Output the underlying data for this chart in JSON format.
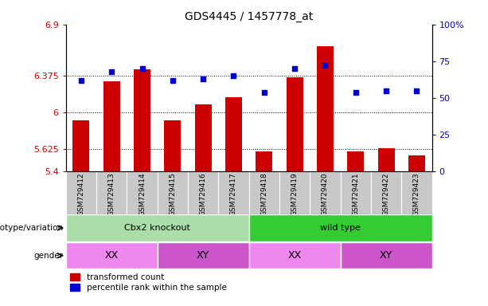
{
  "title": "GDS4445 / 1457778_at",
  "samples": [
    "GSM729412",
    "GSM729413",
    "GSM729414",
    "GSM729415",
    "GSM729416",
    "GSM729417",
    "GSM729418",
    "GSM729419",
    "GSM729420",
    "GSM729421",
    "GSM729422",
    "GSM729423"
  ],
  "transformed_count": [
    5.92,
    6.32,
    6.44,
    5.92,
    6.08,
    6.16,
    5.6,
    6.36,
    6.68,
    5.6,
    5.64,
    5.56
  ],
  "percentile_rank": [
    62,
    68,
    70,
    62,
    63,
    65,
    54,
    70,
    72,
    54,
    55,
    55
  ],
  "ylim_left": [
    5.4,
    6.9
  ],
  "ylim_right": [
    0,
    100
  ],
  "yticks_left": [
    5.4,
    5.625,
    6.0,
    6.375,
    6.9
  ],
  "yticks_right": [
    0,
    25,
    50,
    75,
    100
  ],
  "ytick_labels_left": [
    "5.4",
    "5.625",
    "6",
    "6.375",
    "6.9"
  ],
  "ytick_labels_right": [
    "0",
    "25",
    "50",
    "75",
    "100%"
  ],
  "bar_color": "#cc0000",
  "marker_color": "#0000cc",
  "groups_genotype": [
    {
      "label": "Cbx2 knockout",
      "start": 0,
      "end": 6,
      "color": "#aaddaa"
    },
    {
      "label": "wild type",
      "start": 6,
      "end": 12,
      "color": "#33cc33"
    }
  ],
  "groups_gender": [
    {
      "label": "XX",
      "start": 0,
      "end": 3,
      "color": "#ee88ee"
    },
    {
      "label": "XY",
      "start": 3,
      "end": 6,
      "color": "#cc55cc"
    },
    {
      "label": "XX",
      "start": 6,
      "end": 9,
      "color": "#ee88ee"
    },
    {
      "label": "XY",
      "start": 9,
      "end": 12,
      "color": "#cc55cc"
    }
  ],
  "legend_items": [
    {
      "label": "transformed count",
      "color": "#cc0000"
    },
    {
      "label": "percentile rank within the sample",
      "color": "#0000cc"
    }
  ],
  "bar_width": 0.55,
  "x_tick_bg": "#c8c8c8"
}
